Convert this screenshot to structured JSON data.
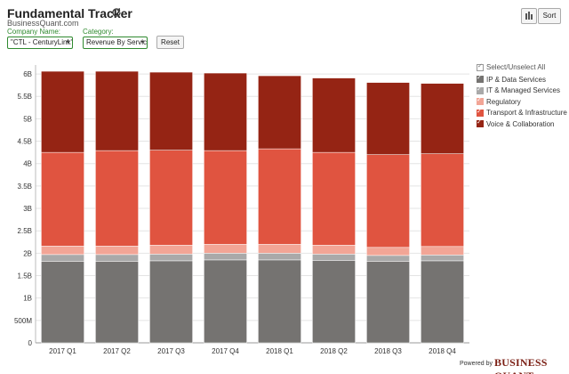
{
  "header": {
    "title": "Fundamental Tracker",
    "brand": "BusinessQuant.com",
    "sort_label": "Sort"
  },
  "filters": {
    "company_label": "Company Name:",
    "company_value": "\"CTL - CenturyLink\"",
    "category_label": "Category:",
    "category_value": "Revenue By Service",
    "reset_label": "Reset"
  },
  "legend": {
    "select_all": "Select/Unselect All"
  },
  "footer": {
    "powered_by": "Powered by",
    "logo_text": "BUSINESS QUANT"
  },
  "colors": {
    "ip_data": "#757371",
    "it_managed": "#a9a9a9",
    "regulatory": "#f2a596",
    "transport": "#e05440",
    "voice": "#952414",
    "accent_green": "#2f8a2f"
  },
  "chart_data": {
    "type": "bar",
    "stacked": true,
    "categories": [
      "2017 Q1",
      "2017 Q2",
      "2017 Q3",
      "2017 Q4",
      "2018 Q1",
      "2018 Q2",
      "2018 Q3",
      "2018 Q4"
    ],
    "series": [
      {
        "name": "IP & Data Services",
        "color": "#757371",
        "values": [
          1.82,
          1.82,
          1.83,
          1.85,
          1.85,
          1.84,
          1.82,
          1.83
        ]
      },
      {
        "name": "IT & Managed Services",
        "color": "#a9a9a9",
        "values": [
          0.15,
          0.15,
          0.15,
          0.15,
          0.15,
          0.14,
          0.13,
          0.13
        ]
      },
      {
        "name": "Regulatory",
        "color": "#f2a596",
        "values": [
          0.19,
          0.19,
          0.2,
          0.2,
          0.2,
          0.2,
          0.18,
          0.19
        ]
      },
      {
        "name": "Transport & Infrastructure",
        "color": "#e05440",
        "values": [
          2.09,
          2.13,
          2.12,
          2.09,
          2.13,
          2.07,
          2.07,
          2.07
        ]
      },
      {
        "name": "Voice & Collaboration",
        "color": "#952414",
        "values": [
          1.81,
          1.77,
          1.74,
          1.73,
          1.63,
          1.66,
          1.61,
          1.57
        ]
      }
    ],
    "y_tick_labels": [
      "0",
      "500M",
      "1B",
      "1.5B",
      "2B",
      "2.5B",
      "3B",
      "3.5B",
      "4B",
      "4.5B",
      "5B",
      "5.5B",
      "6B"
    ],
    "ylim": [
      0,
      6.2
    ],
    "y_unit": "billions USD",
    "grid": true,
    "legend_position": "right"
  }
}
